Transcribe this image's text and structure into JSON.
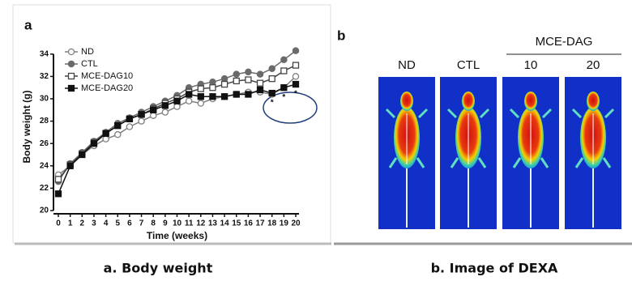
{
  "chart_data": {
    "type": "line",
    "panel_label": "a",
    "x_label": "Time (weeks)",
    "y_label": "Body weight (g)",
    "x": [
      0,
      1,
      2,
      3,
      4,
      5,
      6,
      7,
      8,
      9,
      10,
      11,
      12,
      13,
      14,
      15,
      16,
      17,
      18,
      19,
      20
    ],
    "xlim": [
      0,
      20
    ],
    "xticks": [
      0,
      1,
      2,
      3,
      4,
      5,
      6,
      7,
      8,
      9,
      10,
      11,
      12,
      13,
      14,
      15,
      16,
      17,
      18,
      19,
      20
    ],
    "ylim": [
      20,
      35
    ],
    "yticks": [
      20,
      22,
      24,
      26,
      28,
      30,
      32,
      34
    ],
    "legend": "upper left",
    "series": [
      {
        "name": "ND",
        "color": "#808080",
        "marker": "circle",
        "filled": false,
        "values": [
          23.2,
          24.0,
          25.0,
          25.8,
          26.4,
          26.8,
          27.5,
          28.0,
          28.5,
          28.8,
          29.3,
          29.8,
          29.6,
          30.0,
          30.2,
          30.4,
          30.6,
          30.6,
          30.4,
          31.0,
          32.0
        ]
      },
      {
        "name": "CTL",
        "color": "#6a6a6a",
        "marker": "circle",
        "filled": true,
        "values": [
          22.6,
          24.2,
          25.2,
          26.2,
          27.0,
          27.8,
          28.3,
          28.8,
          29.3,
          29.8,
          30.3,
          31.0,
          31.3,
          31.5,
          31.8,
          32.2,
          32.4,
          32.2,
          32.7,
          33.5,
          34.3
        ]
      },
      {
        "name": "MCE-DAG10",
        "color": "#444444",
        "marker": "square",
        "filled": false,
        "values": [
          22.8,
          24.1,
          25.1,
          26.1,
          26.9,
          27.6,
          28.2,
          28.6,
          29.1,
          29.6,
          30.0,
          30.6,
          30.9,
          31.0,
          31.3,
          31.6,
          31.7,
          31.4,
          31.8,
          32.5,
          33.0
        ]
      },
      {
        "name": "MCE-DAG20",
        "color": "#111111",
        "marker": "square",
        "filled": true,
        "values": [
          21.5,
          24.0,
          25.0,
          26.0,
          26.9,
          27.6,
          28.2,
          28.6,
          29.0,
          29.4,
          29.8,
          30.4,
          30.2,
          30.2,
          30.2,
          30.4,
          30.4,
          30.8,
          30.5,
          31.0,
          31.3
        ]
      }
    ],
    "annotations": [
      {
        "text": "*",
        "x": 18
      },
      {
        "text": "*",
        "x": 19
      },
      {
        "text": "*",
        "x": 20
      }
    ]
  },
  "dexa": {
    "panel_label": "b",
    "group_label": "MCE-DAG",
    "columns": [
      "ND",
      "CTL",
      "10",
      "20"
    ]
  },
  "captions": [
    "a. Body weight",
    "b. Image of DEXA"
  ]
}
